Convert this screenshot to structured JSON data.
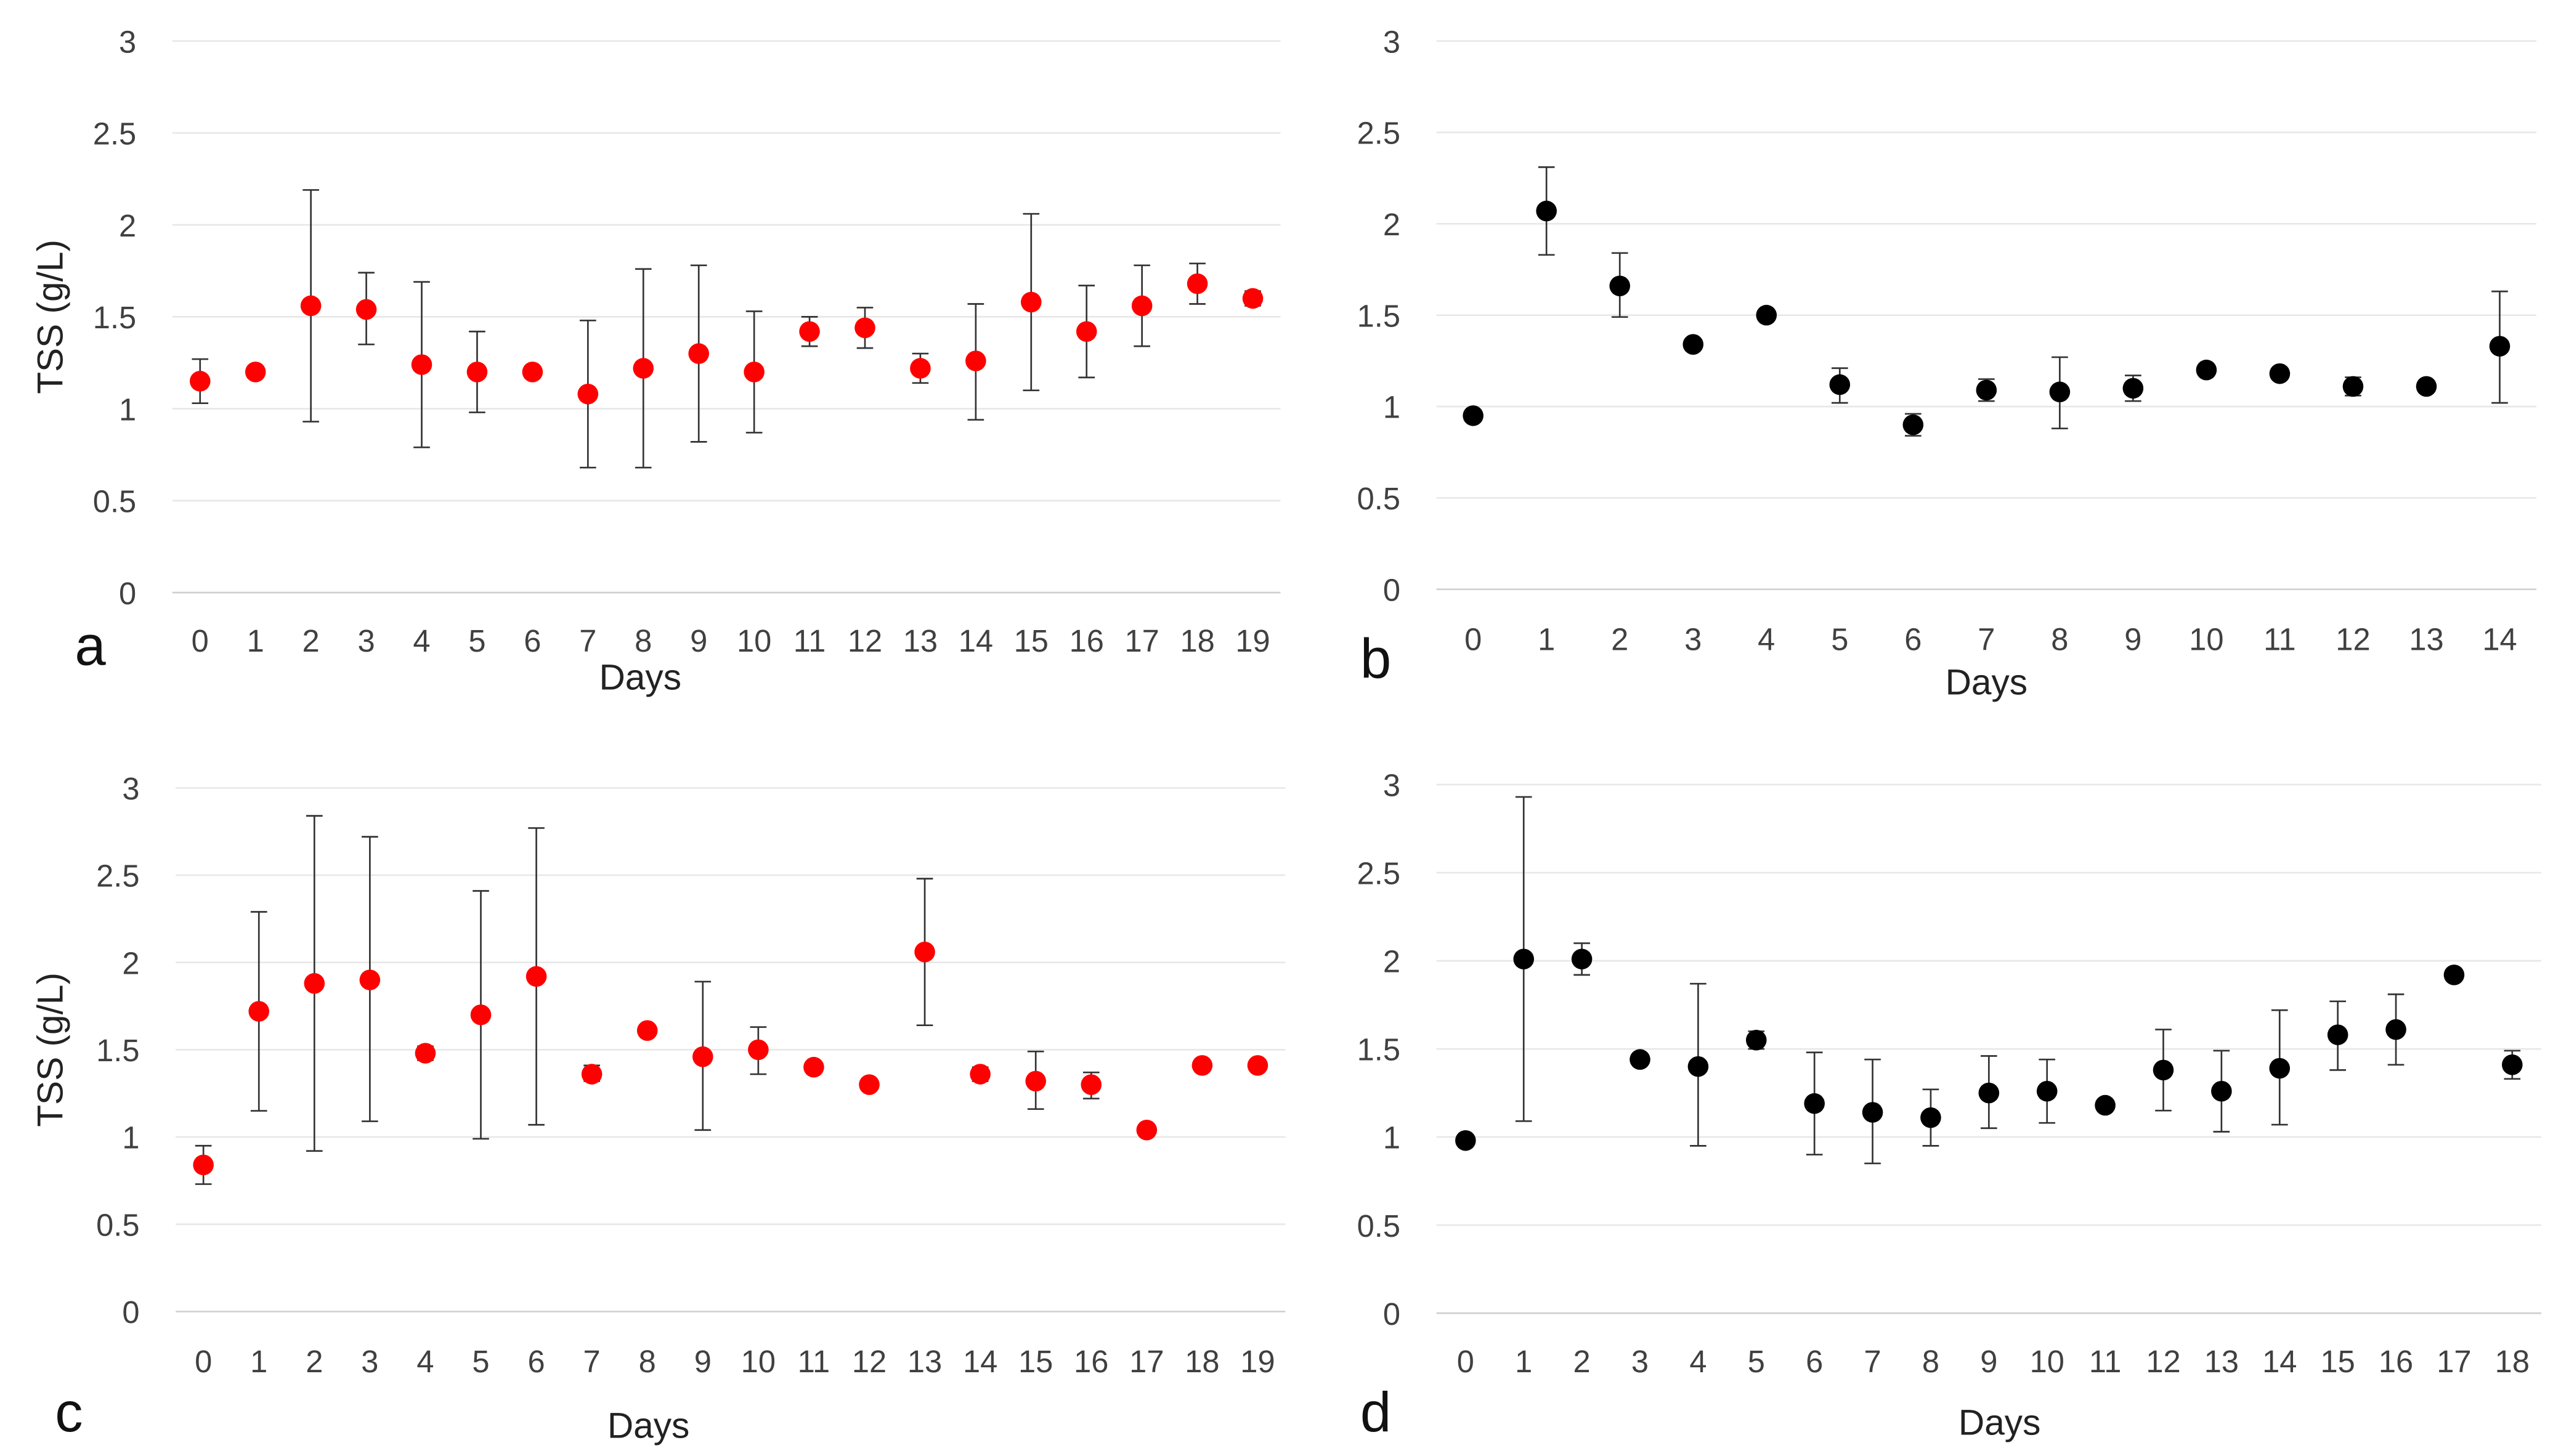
{
  "chart_data": [
    {
      "type": "scatter",
      "panel_label": "a",
      "xlabel": "Days",
      "ylabel": "TSS (g/L)",
      "ylim": [
        0,
        3
      ],
      "yticks": [
        "0",
        "0.5",
        "1",
        "1.5",
        "2",
        "2.5",
        "3"
      ],
      "color": "#ff0000",
      "grid": true,
      "x": [
        0,
        1,
        2,
        3,
        4,
        5,
        6,
        7,
        8,
        9,
        10,
        11,
        12,
        13,
        14,
        15,
        16,
        17,
        18,
        19
      ],
      "y": [
        1.15,
        1.2,
        1.56,
        1.54,
        1.24,
        1.2,
        1.2,
        1.08,
        1.22,
        1.3,
        1.2,
        1.42,
        1.44,
        1.22,
        1.26,
        1.58,
        1.42,
        1.56,
        1.68,
        1.6
      ],
      "err_low": [
        1.03,
        1.2,
        0.93,
        1.35,
        0.79,
        0.98,
        1.2,
        0.68,
        0.68,
        0.82,
        0.87,
        1.34,
        1.33,
        1.14,
        0.94,
        1.1,
        1.17,
        1.34,
        1.57,
        1.56
      ],
      "err_high": [
        1.27,
        1.2,
        2.19,
        1.74,
        1.69,
        1.42,
        1.2,
        1.48,
        1.76,
        1.78,
        1.53,
        1.5,
        1.55,
        1.3,
        1.57,
        2.06,
        1.67,
        1.78,
        1.79,
        1.64
      ]
    },
    {
      "type": "scatter",
      "panel_label": "b",
      "xlabel": "Days",
      "ylabel": "",
      "ylim": [
        0,
        3
      ],
      "yticks": [
        "0",
        "0.5",
        "1",
        "1.5",
        "2",
        "2.5",
        "3"
      ],
      "color": "#000000",
      "grid": true,
      "x": [
        0,
        1,
        2,
        3,
        4,
        5,
        6,
        7,
        8,
        9,
        10,
        11,
        12,
        13,
        14
      ],
      "y": [
        0.95,
        2.07,
        1.66,
        1.34,
        1.5,
        1.12,
        0.9,
        1.09,
        1.08,
        1.1,
        1.2,
        1.18,
        1.11,
        1.11,
        1.33
      ],
      "err_low": [
        0.92,
        1.83,
        1.49,
        1.34,
        1.5,
        1.02,
        0.84,
        1.03,
        0.88,
        1.03,
        1.17,
        1.18,
        1.06,
        1.11,
        1.02
      ],
      "err_high": [
        0.98,
        2.31,
        1.84,
        1.34,
        1.5,
        1.21,
        0.96,
        1.15,
        1.27,
        1.17,
        1.23,
        1.18,
        1.16,
        1.11,
        1.63
      ]
    },
    {
      "type": "scatter",
      "panel_label": "c",
      "xlabel": "Days",
      "ylabel": "TSS (g/L)",
      "ylim": [
        0,
        3
      ],
      "yticks": [
        "0",
        "0.5",
        "1",
        "1.5",
        "2",
        "2.5",
        "3"
      ],
      "color": "#ff0000",
      "grid": true,
      "x": [
        0,
        1,
        2,
        3,
        4,
        5,
        6,
        7,
        8,
        9,
        10,
        11,
        12,
        13,
        14,
        15,
        16,
        17,
        18,
        19
      ],
      "y": [
        0.84,
        1.72,
        1.88,
        1.9,
        1.48,
        1.7,
        1.92,
        1.36,
        1.61,
        1.46,
        1.5,
        1.4,
        1.3,
        2.06,
        1.36,
        1.32,
        1.3,
        1.04,
        1.41,
        1.41
      ],
      "err_low": [
        0.73,
        1.15,
        0.92,
        1.09,
        1.44,
        0.99,
        1.07,
        1.32,
        1.61,
        1.04,
        1.36,
        1.4,
        1.3,
        1.64,
        1.32,
        1.16,
        1.22,
        1.04,
        1.41,
        1.41
      ],
      "err_high": [
        0.95,
        2.29,
        2.84,
        2.72,
        1.52,
        2.41,
        2.77,
        1.41,
        1.61,
        1.89,
        1.63,
        1.4,
        1.3,
        2.48,
        1.4,
        1.49,
        1.37,
        1.04,
        1.41,
        1.41
      ]
    },
    {
      "type": "scatter",
      "panel_label": "d",
      "xlabel": "Days",
      "ylabel": "",
      "ylim": [
        0,
        3
      ],
      "yticks": [
        "0",
        "0.5",
        "1",
        "1.5",
        "2",
        "2.5",
        "3"
      ],
      "color": "#000000",
      "grid": true,
      "x": [
        0,
        1,
        2,
        3,
        4,
        5,
        6,
        7,
        8,
        9,
        10,
        11,
        12,
        13,
        14,
        15,
        16,
        17,
        18
      ],
      "y": [
        0.98,
        2.01,
        2.01,
        1.44,
        1.4,
        1.55,
        1.19,
        1.14,
        1.11,
        1.25,
        1.26,
        1.18,
        1.38,
        1.26,
        1.39,
        1.58,
        1.61,
        1.92,
        1.41
      ],
      "err_low": [
        0.98,
        1.09,
        1.92,
        1.44,
        0.95,
        1.5,
        0.9,
        0.85,
        0.95,
        1.05,
        1.08,
        1.18,
        1.15,
        1.03,
        1.07,
        1.38,
        1.41,
        1.92,
        1.33
      ],
      "err_high": [
        0.98,
        2.93,
        2.1,
        1.44,
        1.87,
        1.6,
        1.48,
        1.44,
        1.27,
        1.46,
        1.44,
        1.18,
        1.61,
        1.49,
        1.72,
        1.77,
        1.81,
        1.92,
        1.49
      ]
    }
  ]
}
